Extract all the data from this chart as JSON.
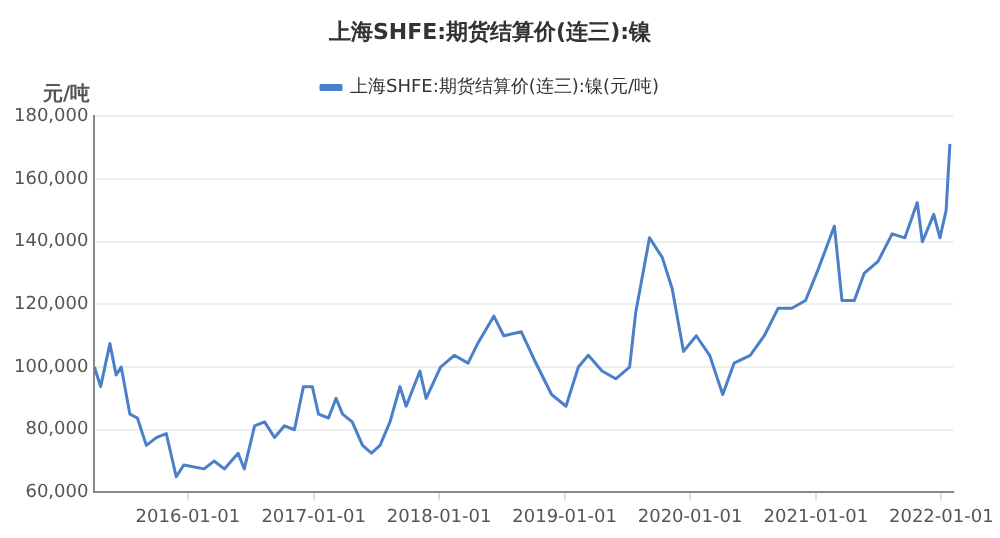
{
  "chart_data": {
    "type": "line",
    "title": "上海SHFE:期货结算价(连三):镍",
    "ylabel": "元/吨",
    "legend": "top",
    "grid": "y",
    "marker": "none",
    "line_style": "solid",
    "xlim": [
      "2015-04-04",
      "2022-02-05"
    ],
    "xticks": [
      "2016-01-01",
      "2017-01-01",
      "2018-01-01",
      "2019-01-01",
      "2020-01-01",
      "2021-01-01",
      "2022-01-01"
    ],
    "ylim": [
      60000,
      180000
    ],
    "yticks": [
      {
        "value": 60000,
        "label": "60,000"
      },
      {
        "value": 80000,
        "label": "80,000"
      },
      {
        "value": 100000,
        "label": "100,000"
      },
      {
        "value": 120000,
        "label": "120,000"
      },
      {
        "value": 140000,
        "label": "140,000"
      },
      {
        "value": 160000,
        "label": "160,000"
      },
      {
        "value": 180000,
        "label": "180,000"
      }
    ],
    "series": [
      {
        "name": "上海SHFE:期货结算价(连三):镍(元/吨)",
        "color": "#4a7fc9",
        "x": [
          "2015-04-04",
          "2015-04-22",
          "2015-05-19",
          "2015-06-06",
          "2015-06-21",
          "2015-07-16",
          "2015-08-07",
          "2015-09-02",
          "2015-10-01",
          "2015-10-30",
          "2015-11-28",
          "2015-12-20",
          "2016-02-17",
          "2016-03-17",
          "2016-04-16",
          "2016-05-26",
          "2016-06-13",
          "2016-07-13",
          "2016-08-11",
          "2016-09-09",
          "2016-10-08",
          "2016-11-06",
          "2016-12-02",
          "2016-12-28",
          "2017-01-15",
          "2017-02-13",
          "2017-03-07",
          "2017-03-26",
          "2017-04-23",
          "2017-05-23",
          "2017-06-18",
          "2017-07-13",
          "2017-08-11",
          "2017-09-09",
          "2017-09-27",
          "2017-11-06",
          "2017-11-24",
          "2018-01-05",
          "2018-02-14",
          "2018-03-26",
          "2018-04-23",
          "2018-06-09",
          "2018-07-08",
          "2018-08-28",
          "2018-10-04",
          "2018-11-24",
          "2019-01-05",
          "2019-02-10",
          "2019-03-11",
          "2019-04-20",
          "2019-05-30",
          "2019-07-09",
          "2019-07-27",
          "2019-09-05",
          "2019-10-12",
          "2019-11-10",
          "2019-12-13",
          "2020-01-19",
          "2020-02-27",
          "2020-04-05",
          "2020-05-08",
          "2020-06-24",
          "2020-08-04",
          "2020-09-13",
          "2020-10-23",
          "2020-12-02",
          "2021-01-08",
          "2021-02-24",
          "2021-03-18",
          "2021-04-23",
          "2021-05-22",
          "2021-07-01",
          "2021-08-11",
          "2021-09-17",
          "2021-10-23",
          "2021-11-07",
          "2021-12-10",
          "2021-12-28",
          "2022-01-15",
          "2022-01-26"
        ],
        "values": [
          100000,
          93750,
          107500,
          97500,
          100000,
          85000,
          83750,
          75000,
          77500,
          78750,
          65000,
          68750,
          67500,
          70000,
          67500,
          72500,
          67500,
          81250,
          82500,
          77500,
          81250,
          80000,
          93750,
          93750,
          85000,
          83750,
          90000,
          85000,
          82500,
          75000,
          72500,
          75000,
          82500,
          93750,
          87500,
          98750,
          90000,
          100000,
          103750,
          101250,
          107500,
          116250,
          110000,
          111250,
          102500,
          91250,
          87500,
          100000,
          103750,
          98750,
          96250,
          100000,
          117500,
          141250,
          135000,
          125000,
          105000,
          110000,
          103750,
          91250,
          101250,
          103750,
          110000,
          118750,
          118750,
          121250,
          131250,
          145000,
          121250,
          121250,
          130000,
          133750,
          142500,
          141250,
          152500,
          140000,
          148750,
          141250,
          150000,
          171250
        ]
      }
    ]
  }
}
